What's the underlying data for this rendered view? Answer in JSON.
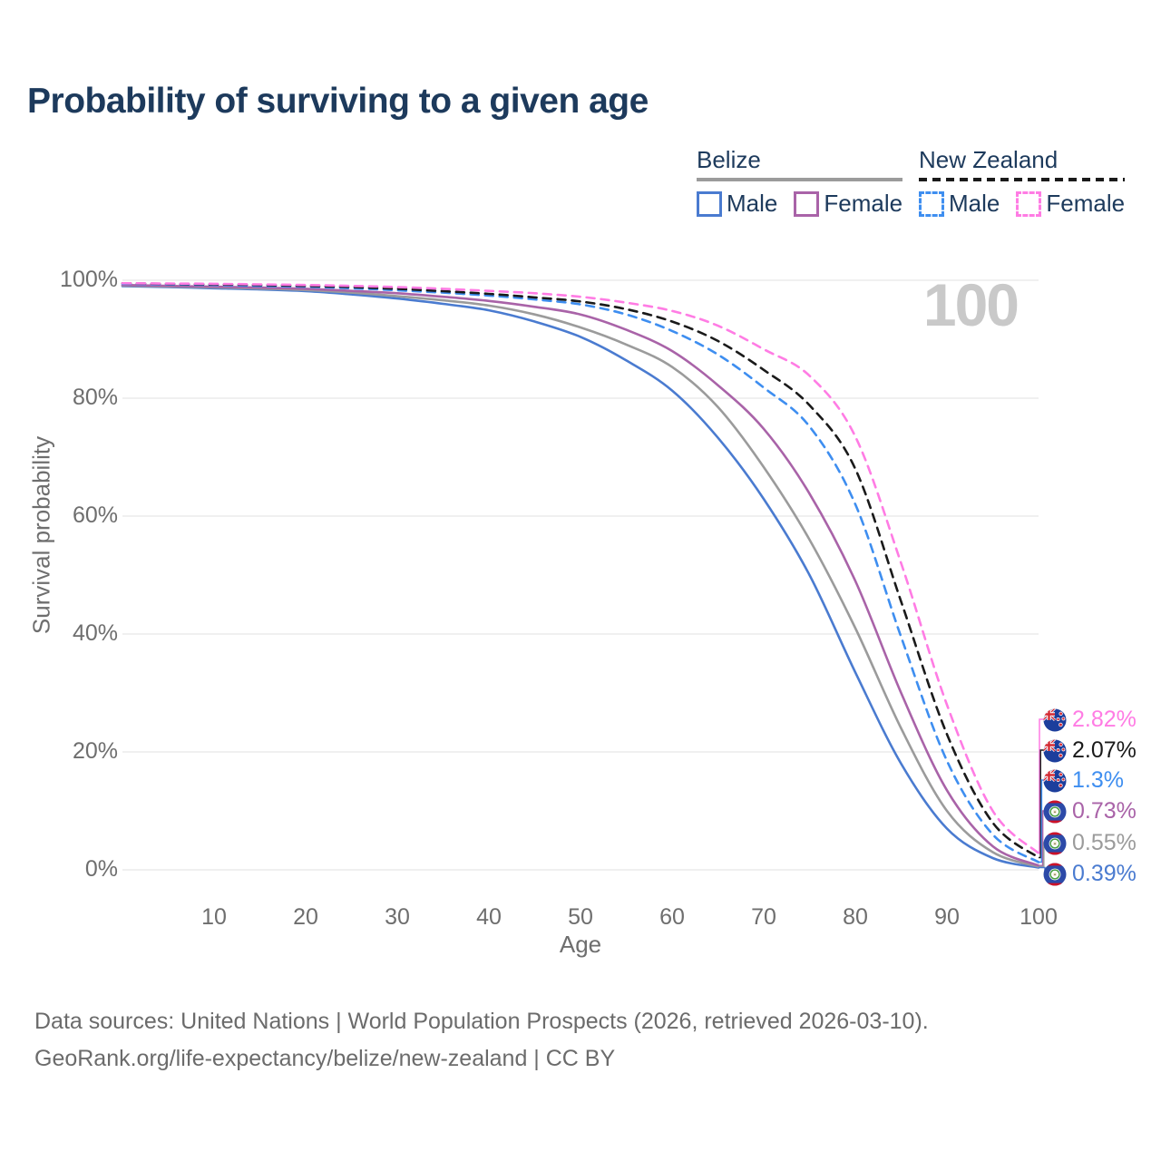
{
  "title": "Probability of surviving to a given age",
  "watermark_age": "100",
  "legend": {
    "groups": [
      {
        "id": "belize",
        "label": "Belize",
        "line_style": "solid",
        "underline_color": "#9b9b9b",
        "items": [
          {
            "label": "Male",
            "color": "#4a7bd0"
          },
          {
            "label": "Female",
            "color": "#a963a8"
          }
        ]
      },
      {
        "id": "new-zealand",
        "label": "New Zealand",
        "line_style": "dashed",
        "underline_color": "#1a1a1a",
        "items": [
          {
            "label": "Male",
            "color": "#3e8ef0"
          },
          {
            "label": "Female",
            "color": "#ff7ce4"
          }
        ]
      }
    ]
  },
  "chart_data": {
    "type": "line",
    "title": "Probability of surviving to a given age",
    "xlabel": "Age",
    "ylabel": "Survival probability",
    "xlim": [
      0,
      100
    ],
    "ylim": [
      0,
      100
    ],
    "grid": true,
    "legend_position": "top-right",
    "x_ticks": [
      10,
      20,
      30,
      40,
      50,
      60,
      70,
      80,
      90,
      100
    ],
    "y_ticks": [
      {
        "value": 0,
        "label": "0%"
      },
      {
        "value": 20,
        "label": "20%"
      },
      {
        "value": 40,
        "label": "40%"
      },
      {
        "value": 60,
        "label": "60%"
      },
      {
        "value": 80,
        "label": "80%"
      },
      {
        "value": 100,
        "label": "100%"
      }
    ],
    "ages": [
      0,
      5,
      10,
      15,
      20,
      25,
      30,
      35,
      40,
      45,
      50,
      55,
      60,
      65,
      70,
      75,
      80,
      85,
      90,
      95,
      100
    ],
    "series": [
      {
        "id": "new-zealand-female",
        "name": "New Zealand — Female",
        "country": "New Zealand",
        "sex": "Female",
        "flag": "nz",
        "color": "#ff7ce4",
        "dashed": true,
        "end_label": "2.82%",
        "values": [
          99.5,
          99.45,
          99.4,
          99.3,
          99.2,
          99.05,
          98.85,
          98.55,
          98.2,
          97.8,
          97.2,
          96.2,
          94.8,
          92.3,
          88.3,
          83.8,
          73.5,
          52.0,
          28.0,
          10.0,
          2.82
        ]
      },
      {
        "id": "new-zealand-total",
        "name": "New Zealand — Both sexes",
        "country": "New Zealand",
        "sex": "Both",
        "flag": "nz",
        "color": "#1a1a1a",
        "dashed": true,
        "end_label": "2.07%",
        "values": [
          99.5,
          99.4,
          99.3,
          99.2,
          99.05,
          98.85,
          98.55,
          98.15,
          97.7,
          97.1,
          96.4,
          95.1,
          93.0,
          89.7,
          84.8,
          78.8,
          68.0,
          45.5,
          23.0,
          8.0,
          2.07
        ]
      },
      {
        "id": "new-zealand-male",
        "name": "New Zealand — Male",
        "country": "New Zealand",
        "sex": "Male",
        "flag": "nz",
        "color": "#3e8ef0",
        "dashed": true,
        "end_label": "1.3%",
        "values": [
          99.4,
          99.3,
          99.2,
          99.05,
          98.9,
          98.65,
          98.3,
          97.9,
          97.4,
          96.75,
          95.9,
          94.2,
          91.4,
          87.4,
          81.8,
          75.2,
          62.0,
          39.5,
          18.5,
          6.0,
          1.3
        ]
      },
      {
        "id": "belize-female",
        "name": "Belize — Female",
        "country": "Belize",
        "sex": "Female",
        "flag": "bz",
        "color": "#a963a8",
        "dashed": false,
        "end_label": "0.73%",
        "values": [
          99.2,
          99.05,
          98.9,
          98.75,
          98.55,
          98.2,
          97.8,
          97.2,
          96.5,
          95.5,
          94.2,
          91.6,
          88.0,
          82.2,
          74.8,
          63.8,
          49.0,
          30.0,
          13.5,
          4.0,
          0.73
        ]
      },
      {
        "id": "belize-total",
        "name": "Belize — Both sexes",
        "country": "Belize",
        "sex": "Both",
        "flag": "bz",
        "color": "#9b9b9b",
        "dashed": false,
        "end_label": "0.55%",
        "values": [
          99.1,
          98.95,
          98.8,
          98.6,
          98.35,
          97.9,
          97.3,
          96.6,
          95.7,
          94.2,
          92.0,
          89.1,
          85.3,
          78.5,
          68.3,
          56.0,
          41.0,
          24.0,
          10.0,
          3.0,
          0.55
        ]
      },
      {
        "id": "belize-male",
        "name": "Belize — Male",
        "country": "Belize",
        "sex": "Male",
        "flag": "bz",
        "color": "#4a7bd0",
        "dashed": false,
        "end_label": "0.39%",
        "values": [
          99.0,
          98.85,
          98.65,
          98.45,
          98.15,
          97.6,
          96.9,
          96.0,
          94.9,
          93.0,
          90.4,
          86.4,
          81.3,
          73.3,
          62.9,
          50.0,
          33.5,
          18.0,
          7.0,
          2.0,
          0.39
        ]
      }
    ]
  },
  "footer": {
    "line1": "Data sources: United Nations | World Population Prospects (2026, retrieved 2026-03-10).",
    "line2": "GeoRank.org/life-expectancy/belize/new-zealand | CC BY"
  }
}
